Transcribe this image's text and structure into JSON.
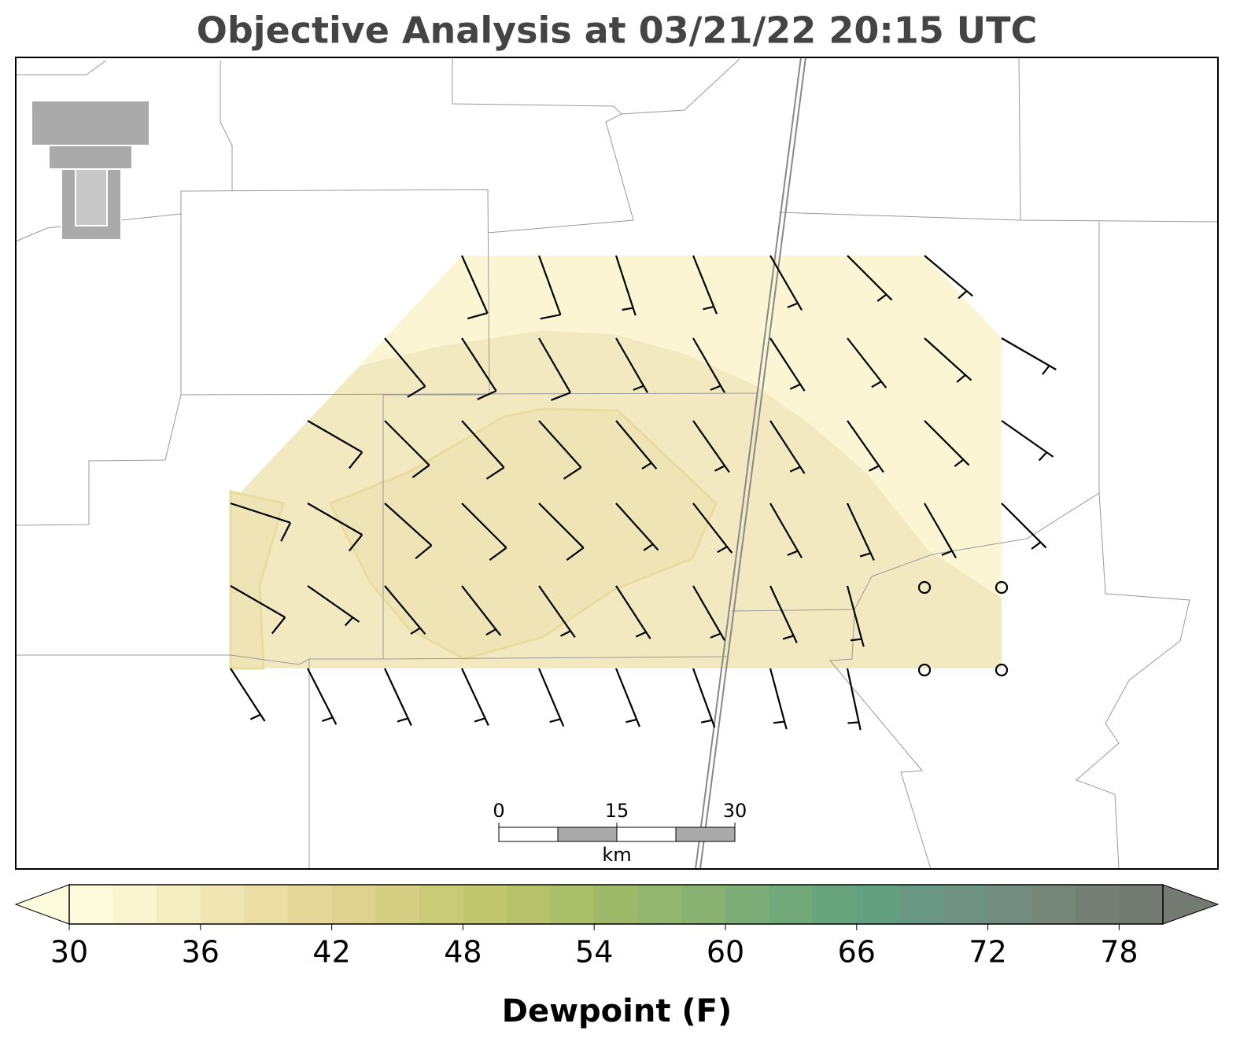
{
  "title": "Objective Analysis at 03/21/22 20:15 UTC",
  "colorbar": {
    "label": "Dewpoint (F)",
    "lim": [
      30,
      80
    ],
    "ticks": [
      30,
      36,
      42,
      48,
      54,
      60,
      66,
      72,
      78
    ],
    "colors": [
      "#fefbdc",
      "#faf4d0",
      "#f5edc2",
      "#f0e6b4",
      "#ebdfa6",
      "#e5d899",
      "#ddd38e",
      "#d4cf82",
      "#cacb77",
      "#c0c76e",
      "#b5c26a",
      "#aabe69",
      "#9fb96b",
      "#94b56e",
      "#88b172",
      "#7dad76",
      "#72a87a",
      "#68a47e",
      "#63a082",
      "#689784",
      "#6f9182",
      "#748c80",
      "#768779",
      "#767f75",
      "#737a72"
    ]
  },
  "scale_bar": {
    "ticks": [
      0,
      15,
      30
    ],
    "unit": "km"
  }
}
